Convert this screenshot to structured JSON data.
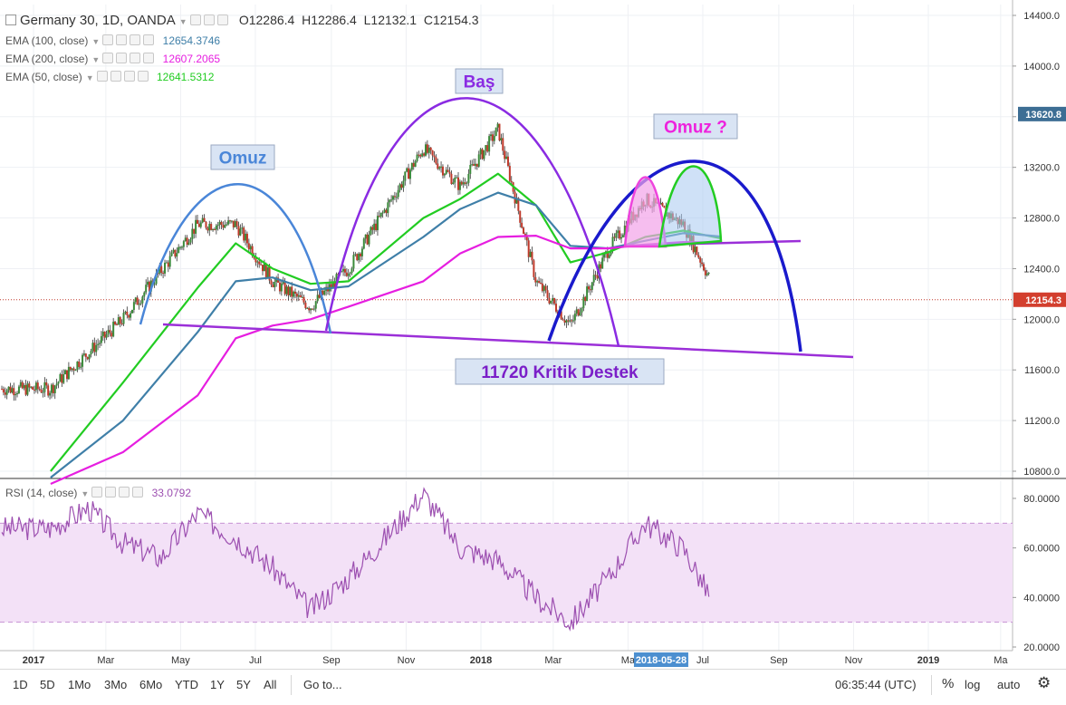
{
  "header": {
    "symbol": "Germany 30, 1D, OANDA",
    "open_label": "O",
    "open": "12286.4",
    "high_label": "H",
    "high": "12286.4",
    "low_label": "L",
    "low": "12132.1",
    "close_label": "C",
    "close": "12154.3"
  },
  "indicators": [
    {
      "label": "EMA (100, close)",
      "value": "12654.3746",
      "color": "#3f7fa8"
    },
    {
      "label": "EMA (200, close)",
      "value": "12607.2065",
      "color": "#e61ee0"
    },
    {
      "label": "EMA (50, close)",
      "value": "12641.5312",
      "color": "#22cc22"
    }
  ],
  "rsi": {
    "label": "RSI (14, close)",
    "value": "33.0792",
    "color": "#9c4fb0",
    "band_upper": 70,
    "band_lower": 30
  },
  "price_axis": {
    "ticks": [
      "14400.0",
      "14000.0",
      "13600.0",
      "13200.0",
      "12800.0",
      "12400.0",
      "12000.0",
      "11600.0",
      "11200.0",
      "10800.0"
    ],
    "current_price": "12154.3",
    "highlight_price": "13620.8"
  },
  "rsi_axis": {
    "ticks": [
      "80.0000",
      "60.0000",
      "40.0000",
      "20.0000"
    ]
  },
  "time_axis": {
    "labels": [
      "2017",
      "Mar",
      "May",
      "Jul",
      "Sep",
      "Nov",
      "2018",
      "Mar",
      "Ma",
      "Jul",
      "Sep",
      "Nov",
      "2019",
      "Ma"
    ],
    "cursor_date": "2018-05-28"
  },
  "annotations": {
    "left_shoulder": "Omuz",
    "head": "Baş",
    "right_shoulder": "Omuz ?",
    "support": "11720 Kritik Destek"
  },
  "toolbar": {
    "ranges": [
      "1D",
      "5D",
      "1Mo",
      "3Mo",
      "6Mo",
      "YTD",
      "1Y",
      "5Y",
      "All"
    ],
    "goto": "Go to...",
    "clock": "06:35:44 (UTC)",
    "percent": "%",
    "log": "log",
    "auto": "auto"
  },
  "colors": {
    "up": "#3a8a3a",
    "down": "#c0392b",
    "grid": "#eef0f4",
    "rsi_band": "#f3e1f7"
  },
  "chart_data": [
    {
      "type": "line",
      "title": "Germany 30, 1D, OANDA",
      "xlabel": "",
      "ylabel": "",
      "ylim": [
        10700,
        14500
      ],
      "x": [
        "2017-01",
        "2017-03",
        "2017-05",
        "2017-06",
        "2017-07",
        "2017-08",
        "2017-09",
        "2017-11",
        "2017-12",
        "2018-01",
        "2018-02",
        "2018-03",
        "2018-04",
        "2018-05",
        "2018-06",
        "2018-07"
      ],
      "series": [
        {
          "name": "Germany 30",
          "values": [
            11450,
            12000,
            12750,
            12750,
            12300,
            12100,
            12400,
            13350,
            13050,
            13500,
            12300,
            11950,
            12550,
            12950,
            12750,
            12154
          ]
        },
        {
          "name": "EMA (50, close)",
          "values": [
            10800,
            11500,
            12250,
            12600,
            12400,
            12280,
            12300,
            12800,
            12950,
            13150,
            12900,
            12450,
            12530,
            12650,
            12700,
            12641
          ]
        },
        {
          "name": "EMA (100, close)",
          "values": [
            10750,
            11200,
            11900,
            12300,
            12330,
            12230,
            12260,
            12650,
            12870,
            13000,
            12900,
            12580,
            12560,
            12620,
            12680,
            12654
          ]
        },
        {
          "name": "EMA (200, close)",
          "values": [
            10700,
            10950,
            11400,
            11850,
            11950,
            12000,
            12100,
            12300,
            12520,
            12650,
            12660,
            12560,
            12560,
            12590,
            12610,
            12607
          ]
        }
      ]
    },
    {
      "type": "line",
      "title": "RSI (14, close)",
      "xlabel": "",
      "ylabel": "",
      "ylim": [
        20,
        85
      ],
      "x": [
        "2017-01",
        "2017-02",
        "2017-03",
        "2017-04",
        "2017-05",
        "2017-06",
        "2017-07",
        "2017-08",
        "2017-09",
        "2017-10",
        "2017-11",
        "2017-12",
        "2018-01",
        "2018-02",
        "2018-03",
        "2018-04",
        "2018-05",
        "2018-06",
        "2018-07"
      ],
      "series": [
        {
          "name": "RSI",
          "values": [
            68,
            76,
            62,
            56,
            74,
            64,
            52,
            35,
            48,
            64,
            82,
            60,
            55,
            40,
            30,
            48,
            70,
            60,
            33
          ]
        }
      ]
    }
  ]
}
